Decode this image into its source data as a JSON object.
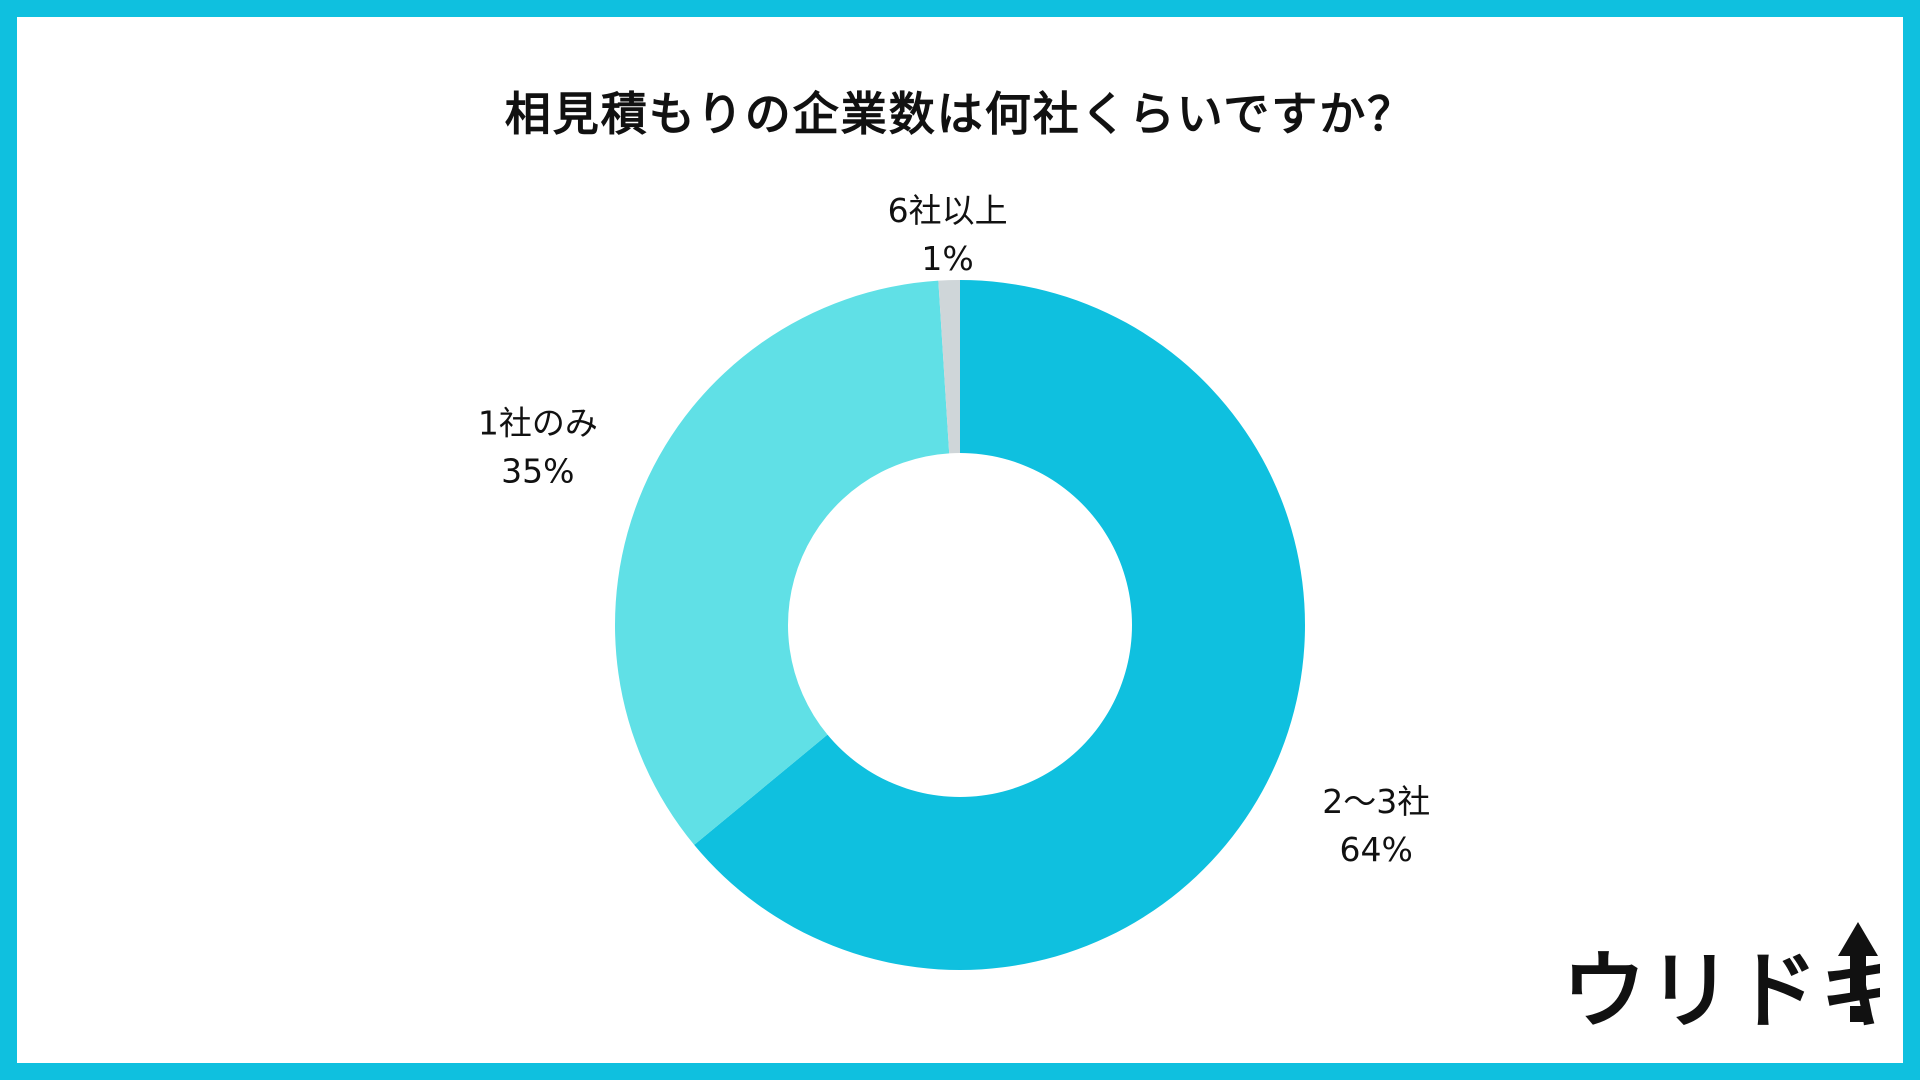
{
  "chart_data": {
    "type": "pie",
    "variant": "donut",
    "title": "相見積もりの企業数は何社くらいですか？",
    "slices": [
      {
        "label": "2〜3社",
        "value": 64,
        "value_label": "64%",
        "color": "#0fc0df"
      },
      {
        "label": "1社のみ",
        "value": 35,
        "value_label": "35%",
        "color": "#60e0e6"
      },
      {
        "label": "6社以上",
        "value": 1,
        "value_label": "1%",
        "color": "#cfd6d9"
      }
    ],
    "legend": "none"
  },
  "colors": {
    "frame": "#0fc0df",
    "background": "#ffffff",
    "text": "#111111"
  },
  "logo": {
    "text": "ウリドキ",
    "icon": "up-arrow-exclamation-icon"
  }
}
